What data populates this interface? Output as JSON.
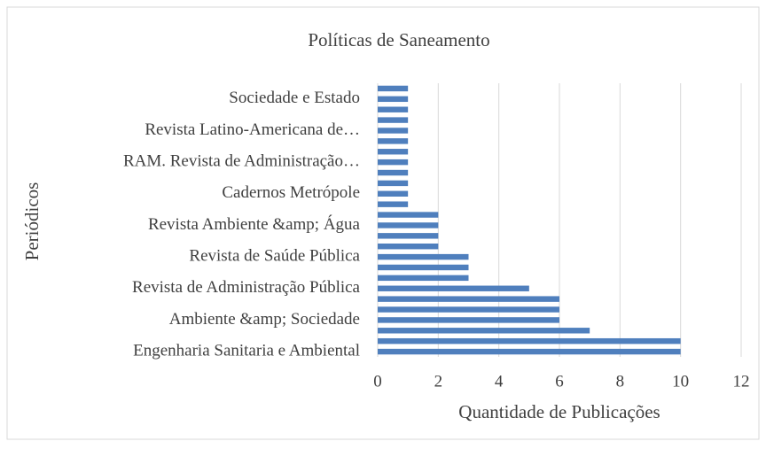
{
  "chart_data": {
    "type": "bar",
    "orientation": "horizontal",
    "title": "Políticas de Saneamento",
    "x_label": "Quantidade de Publicações",
    "y_label": "Periódicos",
    "categories": [
      "Engenharia Sanitaria e Ambiental",
      null,
      null,
      "Ambiente &amp; Sociedade",
      null,
      null,
      "Revista de Administração Pública",
      null,
      null,
      "Revista de Saúde Pública",
      null,
      null,
      "Revista Ambiente &amp; Água",
      null,
      null,
      "Cadernos Metrópole",
      null,
      null,
      "RAM. Revista de Administração…",
      null,
      null,
      "Revista Latino-Americana de…",
      null,
      null,
      "Sociedade e Estado",
      null
    ],
    "values": [
      10,
      10,
      7,
      6,
      6,
      6,
      5,
      3,
      3,
      3,
      2,
      2,
      2,
      2,
      1,
      1,
      1,
      1,
      1,
      1,
      1,
      1,
      1,
      1,
      1,
      1
    ],
    "color": "#4f7fbd",
    "xlim": [
      0,
      12
    ],
    "xticks": [
      0,
      2,
      4,
      6,
      8,
      10,
      12
    ],
    "grid": true
  }
}
